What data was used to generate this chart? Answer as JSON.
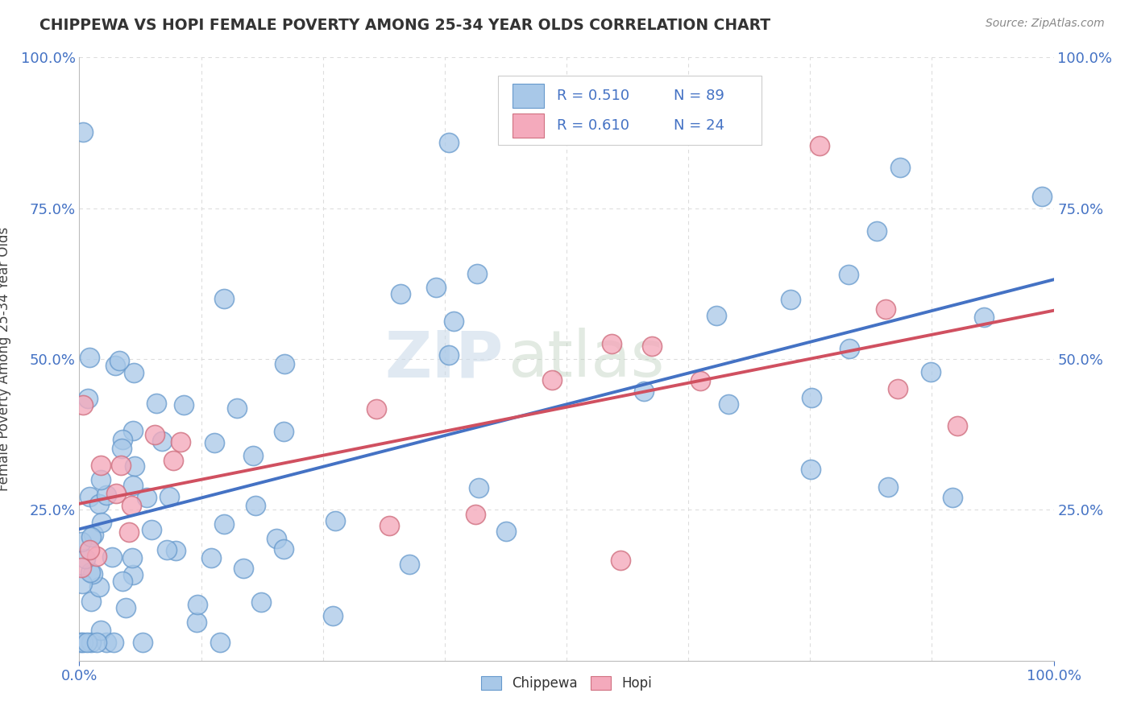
{
  "title": "CHIPPEWA VS HOPI FEMALE POVERTY AMONG 25-34 YEAR OLDS CORRELATION CHART",
  "source": "Source: ZipAtlas.com",
  "ylabel": "Female Poverty Among 25-34 Year Olds",
  "xlim": [
    0,
    1
  ],
  "ylim": [
    0,
    1
  ],
  "xtick_labels": [
    "0.0%",
    "100.0%"
  ],
  "ytick_labels": [
    "25.0%",
    "50.0%",
    "75.0%",
    "100.0%"
  ],
  "ytick_positions": [
    0.25,
    0.5,
    0.75,
    1.0
  ],
  "chippewa_color": "#A8C8E8",
  "chippewa_edge": "#6699CC",
  "hopi_color": "#F4AABC",
  "hopi_edge": "#D07080",
  "trend_chippewa_color": "#4472C4",
  "trend_hopi_color": "#D05060",
  "background_color": "#FFFFFF",
  "grid_color": "#DDDDDD",
  "watermark_zip": "ZIP",
  "watermark_atlas": "atlas",
  "legend_R_chippewa": "R = 0.510",
  "legend_N_chippewa": "N = 89",
  "legend_R_hopi": "R = 0.610",
  "legend_N_hopi": "N = 24",
  "title_color": "#333333",
  "source_color": "#888888",
  "axis_color": "#4472C4",
  "label_color": "#444444"
}
